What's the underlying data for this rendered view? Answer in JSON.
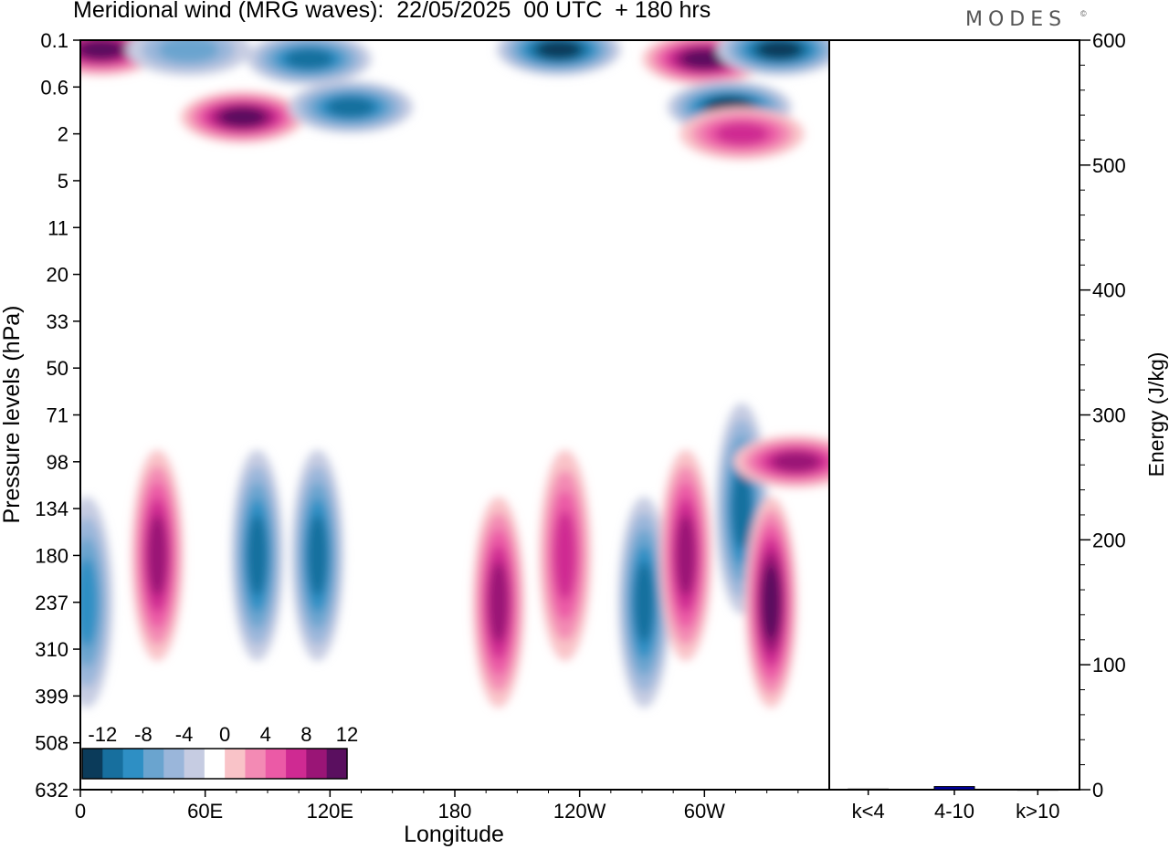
{
  "header": {
    "title": "Meridional wind (MRG waves):  22/05/2025  00 UTC  + 180 hrs",
    "logo_text": "MODES",
    "logo_mark": "©"
  },
  "chart_data": [
    {
      "type": "heatmap",
      "title": "Meridional wind (MRG waves):  22/05/2025  00 UTC  + 180 hrs",
      "xlabel": "Longitude",
      "ylabel": "Pressure levels (hPa)",
      "x_ticks": [
        "0",
        "60E",
        "120E",
        "180",
        "120W",
        "60W"
      ],
      "x_tick_degrees": [
        0,
        60,
        120,
        180,
        240,
        300
      ],
      "xlim": [
        0,
        360
      ],
      "y_ticks": [
        "0.1",
        "0.6",
        "2",
        "5",
        "11",
        "20",
        "33",
        "50",
        "71",
        "98",
        "134",
        "180",
        "237",
        "310",
        "399",
        "508",
        "632"
      ],
      "y_scale": "model levels",
      "colorbar": {
        "labels": [
          "-12",
          "-8",
          "-4",
          "0",
          "4",
          "8",
          "12"
        ],
        "levels": [
          -14,
          -12,
          -10,
          -8,
          -6,
          -4,
          -2,
          2,
          4,
          6,
          8,
          10,
          12,
          14
        ],
        "colors": [
          "#0b3b5a",
          "#176f9e",
          "#2e8fc4",
          "#6aa4cf",
          "#9ab6da",
          "#c6cce2",
          "#ffffff",
          "#f9c3c8",
          "#f38ab4",
          "#eb5aa6",
          "#cf2a92",
          "#9a1576",
          "#5a0f5f"
        ],
        "placement": "bottom-left"
      },
      "features": [
        {
          "lon": 10,
          "level": "0.2",
          "value": 14
        },
        {
          "lon": 52,
          "level": "0.2",
          "value": -6
        },
        {
          "lon": 78,
          "level": "1.5",
          "value": 12
        },
        {
          "lon": 110,
          "level": "0.3",
          "value": -10
        },
        {
          "lon": 130,
          "level": "1.2",
          "value": -10
        },
        {
          "lon": 230,
          "level": "0.2",
          "value": -12
        },
        {
          "lon": 300,
          "level": "0.3",
          "value": 12
        },
        {
          "lon": 312,
          "level": "1.2",
          "value": -12
        },
        {
          "lon": 336,
          "level": "0.2",
          "value": -12
        },
        {
          "lon": 318,
          "level": "2",
          "value": 8
        },
        {
          "lon": 37,
          "level": "180",
          "value": 10
        },
        {
          "lon": 3,
          "level": "237",
          "value": -8
        },
        {
          "lon": 85,
          "level": "180",
          "value": -10
        },
        {
          "lon": 114,
          "level": "180",
          "value": -10
        },
        {
          "lon": 201,
          "level": "237",
          "value": 10
        },
        {
          "lon": 233,
          "level": "180",
          "value": 8
        },
        {
          "lon": 271,
          "level": "237",
          "value": -10
        },
        {
          "lon": 291,
          "level": "180",
          "value": 10
        },
        {
          "lon": 318,
          "level": "134",
          "value": -10
        },
        {
          "lon": 332,
          "level": "237",
          "value": 12
        },
        {
          "lon": 344,
          "level": "98",
          "value": 10
        }
      ]
    },
    {
      "type": "bar",
      "ylabel": "Energy (J/kg)",
      "categories": [
        "k<4",
        "4-10",
        "k>10"
      ],
      "values": [
        0.5,
        2.5,
        0.3
      ],
      "ylim": [
        0,
        600
      ],
      "y_ticks": [
        "0",
        "100",
        "200",
        "300",
        "400",
        "500",
        "600"
      ],
      "bar_color": "#0000a0"
    }
  ]
}
